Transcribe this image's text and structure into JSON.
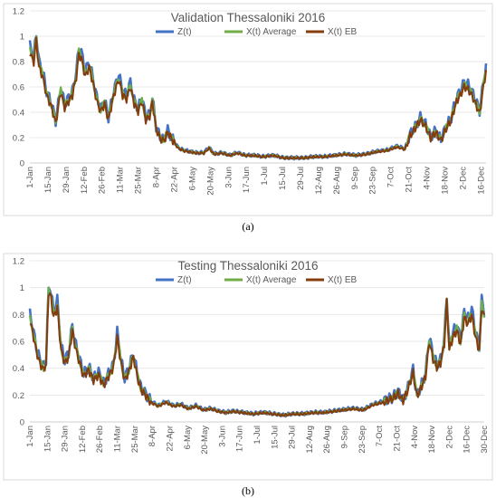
{
  "chart_data": [
    {
      "type": "line",
      "title": "Validation Thessaloniki 2016",
      "caption": "(a)",
      "ylim": [
        0,
        1.2
      ],
      "yticks": [
        "0",
        "0.2",
        "0.4",
        "0.6",
        "0.8",
        "1",
        "1.2"
      ],
      "xticks": [
        "1-Jan",
        "15-Jan",
        "29-Jan",
        "12-Feb",
        "26-Feb",
        "11-Mar",
        "25-Mar",
        "8-Apr",
        "22-Apr",
        "6-May",
        "20-May",
        "3-Jun",
        "17-Jun",
        "1-Jul",
        "15-Jul",
        "29-Jul",
        "12-Aug",
        "26-Aug",
        "9-Sep",
        "23-Sep",
        "7-Oct",
        "21-Oct",
        "4-Nov",
        "18-Nov",
        "2-Dec",
        "16-Dec"
      ],
      "x_range_days": [
        1,
        355
      ],
      "grid": "horizontal",
      "legend": "top",
      "series": [
        {
          "name": "Z(t)",
          "color": "#4472c4"
        },
        {
          "name": "X(t) Average",
          "color": "#70ad47"
        },
        {
          "name": "X(t) EB",
          "color": "#843c0c"
        }
      ],
      "anchors": [
        [
          1,
          0.9
        ],
        [
          4,
          0.82
        ],
        [
          6,
          1.0
        ],
        [
          8,
          0.78
        ],
        [
          11,
          0.7
        ],
        [
          14,
          0.55
        ],
        [
          18,
          0.45
        ],
        [
          21,
          0.32
        ],
        [
          25,
          0.58
        ],
        [
          28,
          0.45
        ],
        [
          31,
          0.5
        ],
        [
          34,
          0.55
        ],
        [
          37,
          0.7
        ],
        [
          39,
          0.88
        ],
        [
          41,
          0.85
        ],
        [
          44,
          0.7
        ],
        [
          47,
          0.78
        ],
        [
          50,
          0.65
        ],
        [
          53,
          0.5
        ],
        [
          56,
          0.42
        ],
        [
          59,
          0.48
        ],
        [
          62,
          0.35
        ],
        [
          66,
          0.55
        ],
        [
          70,
          0.68
        ],
        [
          73,
          0.55
        ],
        [
          76,
          0.52
        ],
        [
          79,
          0.62
        ],
        [
          82,
          0.48
        ],
        [
          85,
          0.42
        ],
        [
          88,
          0.5
        ],
        [
          91,
          0.35
        ],
        [
          94,
          0.38
        ],
        [
          96,
          0.5
        ],
        [
          99,
          0.28
        ],
        [
          102,
          0.2
        ],
        [
          105,
          0.18
        ],
        [
          108,
          0.25
        ],
        [
          112,
          0.18
        ],
        [
          116,
          0.12
        ],
        [
          120,
          0.1
        ],
        [
          125,
          0.09
        ],
        [
          130,
          0.08
        ],
        [
          136,
          0.08
        ],
        [
          140,
          0.12
        ],
        [
          144,
          0.07
        ],
        [
          150,
          0.08
        ],
        [
          156,
          0.06
        ],
        [
          162,
          0.08
        ],
        [
          168,
          0.06
        ],
        [
          175,
          0.06
        ],
        [
          182,
          0.05
        ],
        [
          190,
          0.06
        ],
        [
          198,
          0.04
        ],
        [
          206,
          0.04
        ],
        [
          214,
          0.04
        ],
        [
          222,
          0.05
        ],
        [
          230,
          0.05
        ],
        [
          238,
          0.06
        ],
        [
          246,
          0.07
        ],
        [
          254,
          0.06
        ],
        [
          262,
          0.07
        ],
        [
          270,
          0.09
        ],
        [
          278,
          0.1
        ],
        [
          286,
          0.13
        ],
        [
          292,
          0.11
        ],
        [
          296,
          0.22
        ],
        [
          300,
          0.28
        ],
        [
          304,
          0.35
        ],
        [
          308,
          0.3
        ],
        [
          312,
          0.2
        ],
        [
          316,
          0.25
        ],
        [
          320,
          0.18
        ],
        [
          324,
          0.28
        ],
        [
          328,
          0.35
        ],
        [
          332,
          0.5
        ],
        [
          335,
          0.55
        ],
        [
          338,
          0.62
        ],
        [
          341,
          0.6
        ],
        [
          344,
          0.55
        ],
        [
          347,
          0.48
        ],
        [
          350,
          0.4
        ],
        [
          353,
          0.62
        ],
        [
          355,
          0.75
        ]
      ]
    },
    {
      "type": "line",
      "title": "Testing Thessaloniki 2016",
      "caption": "(b)",
      "ylim": [
        0,
        1.2
      ],
      "yticks": [
        "0",
        "0.2",
        "0.4",
        "0.6",
        "0.8",
        "1",
        "1.2"
      ],
      "xticks": [
        "1-Jan",
        "15-Jan",
        "29-Jan",
        "12-Feb",
        "26-Feb",
        "11-Mar",
        "25-Mar",
        "8-Apr",
        "22-Apr",
        "6-May",
        "20-May",
        "3-Jun",
        "17-Jun",
        "1-Jul",
        "15-Jul",
        "29-Jul",
        "12-Aug",
        "26-Aug",
        "9-Sep",
        "23-Sep",
        "7-Oct",
        "21-Oct",
        "4-Nov",
        "18-Nov",
        "2-Dec",
        "16-Dec",
        "30-Dec"
      ],
      "x_range_days": [
        1,
        365
      ],
      "grid": "horizontal",
      "legend": "top",
      "series": [
        {
          "name": "Z(t)",
          "color": "#4472c4"
        },
        {
          "name": "X(t) Average",
          "color": "#70ad47"
        },
        {
          "name": "X(t) EB",
          "color": "#843c0c"
        }
      ],
      "anchors": [
        [
          1,
          0.78
        ],
        [
          3,
          0.7
        ],
        [
          6,
          0.55
        ],
        [
          9,
          0.45
        ],
        [
          12,
          0.4
        ],
        [
          14,
          0.45
        ],
        [
          16,
          1.0
        ],
        [
          18,
          0.95
        ],
        [
          20,
          0.8
        ],
        [
          23,
          0.88
        ],
        [
          26,
          0.55
        ],
        [
          29,
          0.45
        ],
        [
          32,
          0.5
        ],
        [
          35,
          0.7
        ],
        [
          38,
          0.55
        ],
        [
          41,
          0.45
        ],
        [
          44,
          0.35
        ],
        [
          48,
          0.4
        ],
        [
          52,
          0.32
        ],
        [
          56,
          0.36
        ],
        [
          60,
          0.28
        ],
        [
          64,
          0.35
        ],
        [
          68,
          0.42
        ],
        [
          71,
          0.65
        ],
        [
          74,
          0.45
        ],
        [
          77,
          0.32
        ],
        [
          80,
          0.38
        ],
        [
          84,
          0.5
        ],
        [
          87,
          0.35
        ],
        [
          90,
          0.25
        ],
        [
          94,
          0.2
        ],
        [
          98,
          0.15
        ],
        [
          104,
          0.12
        ],
        [
          110,
          0.15
        ],
        [
          116,
          0.12
        ],
        [
          122,
          0.13
        ],
        [
          128,
          0.1
        ],
        [
          134,
          0.12
        ],
        [
          140,
          0.09
        ],
        [
          146,
          0.1
        ],
        [
          152,
          0.08
        ],
        [
          158,
          0.07
        ],
        [
          164,
          0.08
        ],
        [
          172,
          0.07
        ],
        [
          180,
          0.06
        ],
        [
          188,
          0.07
        ],
        [
          196,
          0.06
        ],
        [
          204,
          0.05
        ],
        [
          212,
          0.06
        ],
        [
          220,
          0.06
        ],
        [
          228,
          0.07
        ],
        [
          236,
          0.07
        ],
        [
          244,
          0.08
        ],
        [
          252,
          0.09
        ],
        [
          260,
          0.1
        ],
        [
          268,
          0.09
        ],
        [
          276,
          0.13
        ],
        [
          284,
          0.15
        ],
        [
          292,
          0.18
        ],
        [
          296,
          0.22
        ],
        [
          300,
          0.16
        ],
        [
          304,
          0.25
        ],
        [
          308,
          0.38
        ],
        [
          311,
          0.2
        ],
        [
          314,
          0.25
        ],
        [
          318,
          0.35
        ],
        [
          321,
          0.62
        ],
        [
          324,
          0.48
        ],
        [
          327,
          0.42
        ],
        [
          330,
          0.45
        ],
        [
          333,
          0.6
        ],
        [
          335,
          0.92
        ],
        [
          337,
          0.55
        ],
        [
          340,
          0.65
        ],
        [
          343,
          0.7
        ],
        [
          346,
          0.6
        ],
        [
          349,
          0.8
        ],
        [
          352,
          0.75
        ],
        [
          355,
          0.82
        ],
        [
          358,
          0.65
        ],
        [
          361,
          0.55
        ],
        [
          363,
          0.88
        ],
        [
          365,
          0.8
        ]
      ]
    }
  ]
}
